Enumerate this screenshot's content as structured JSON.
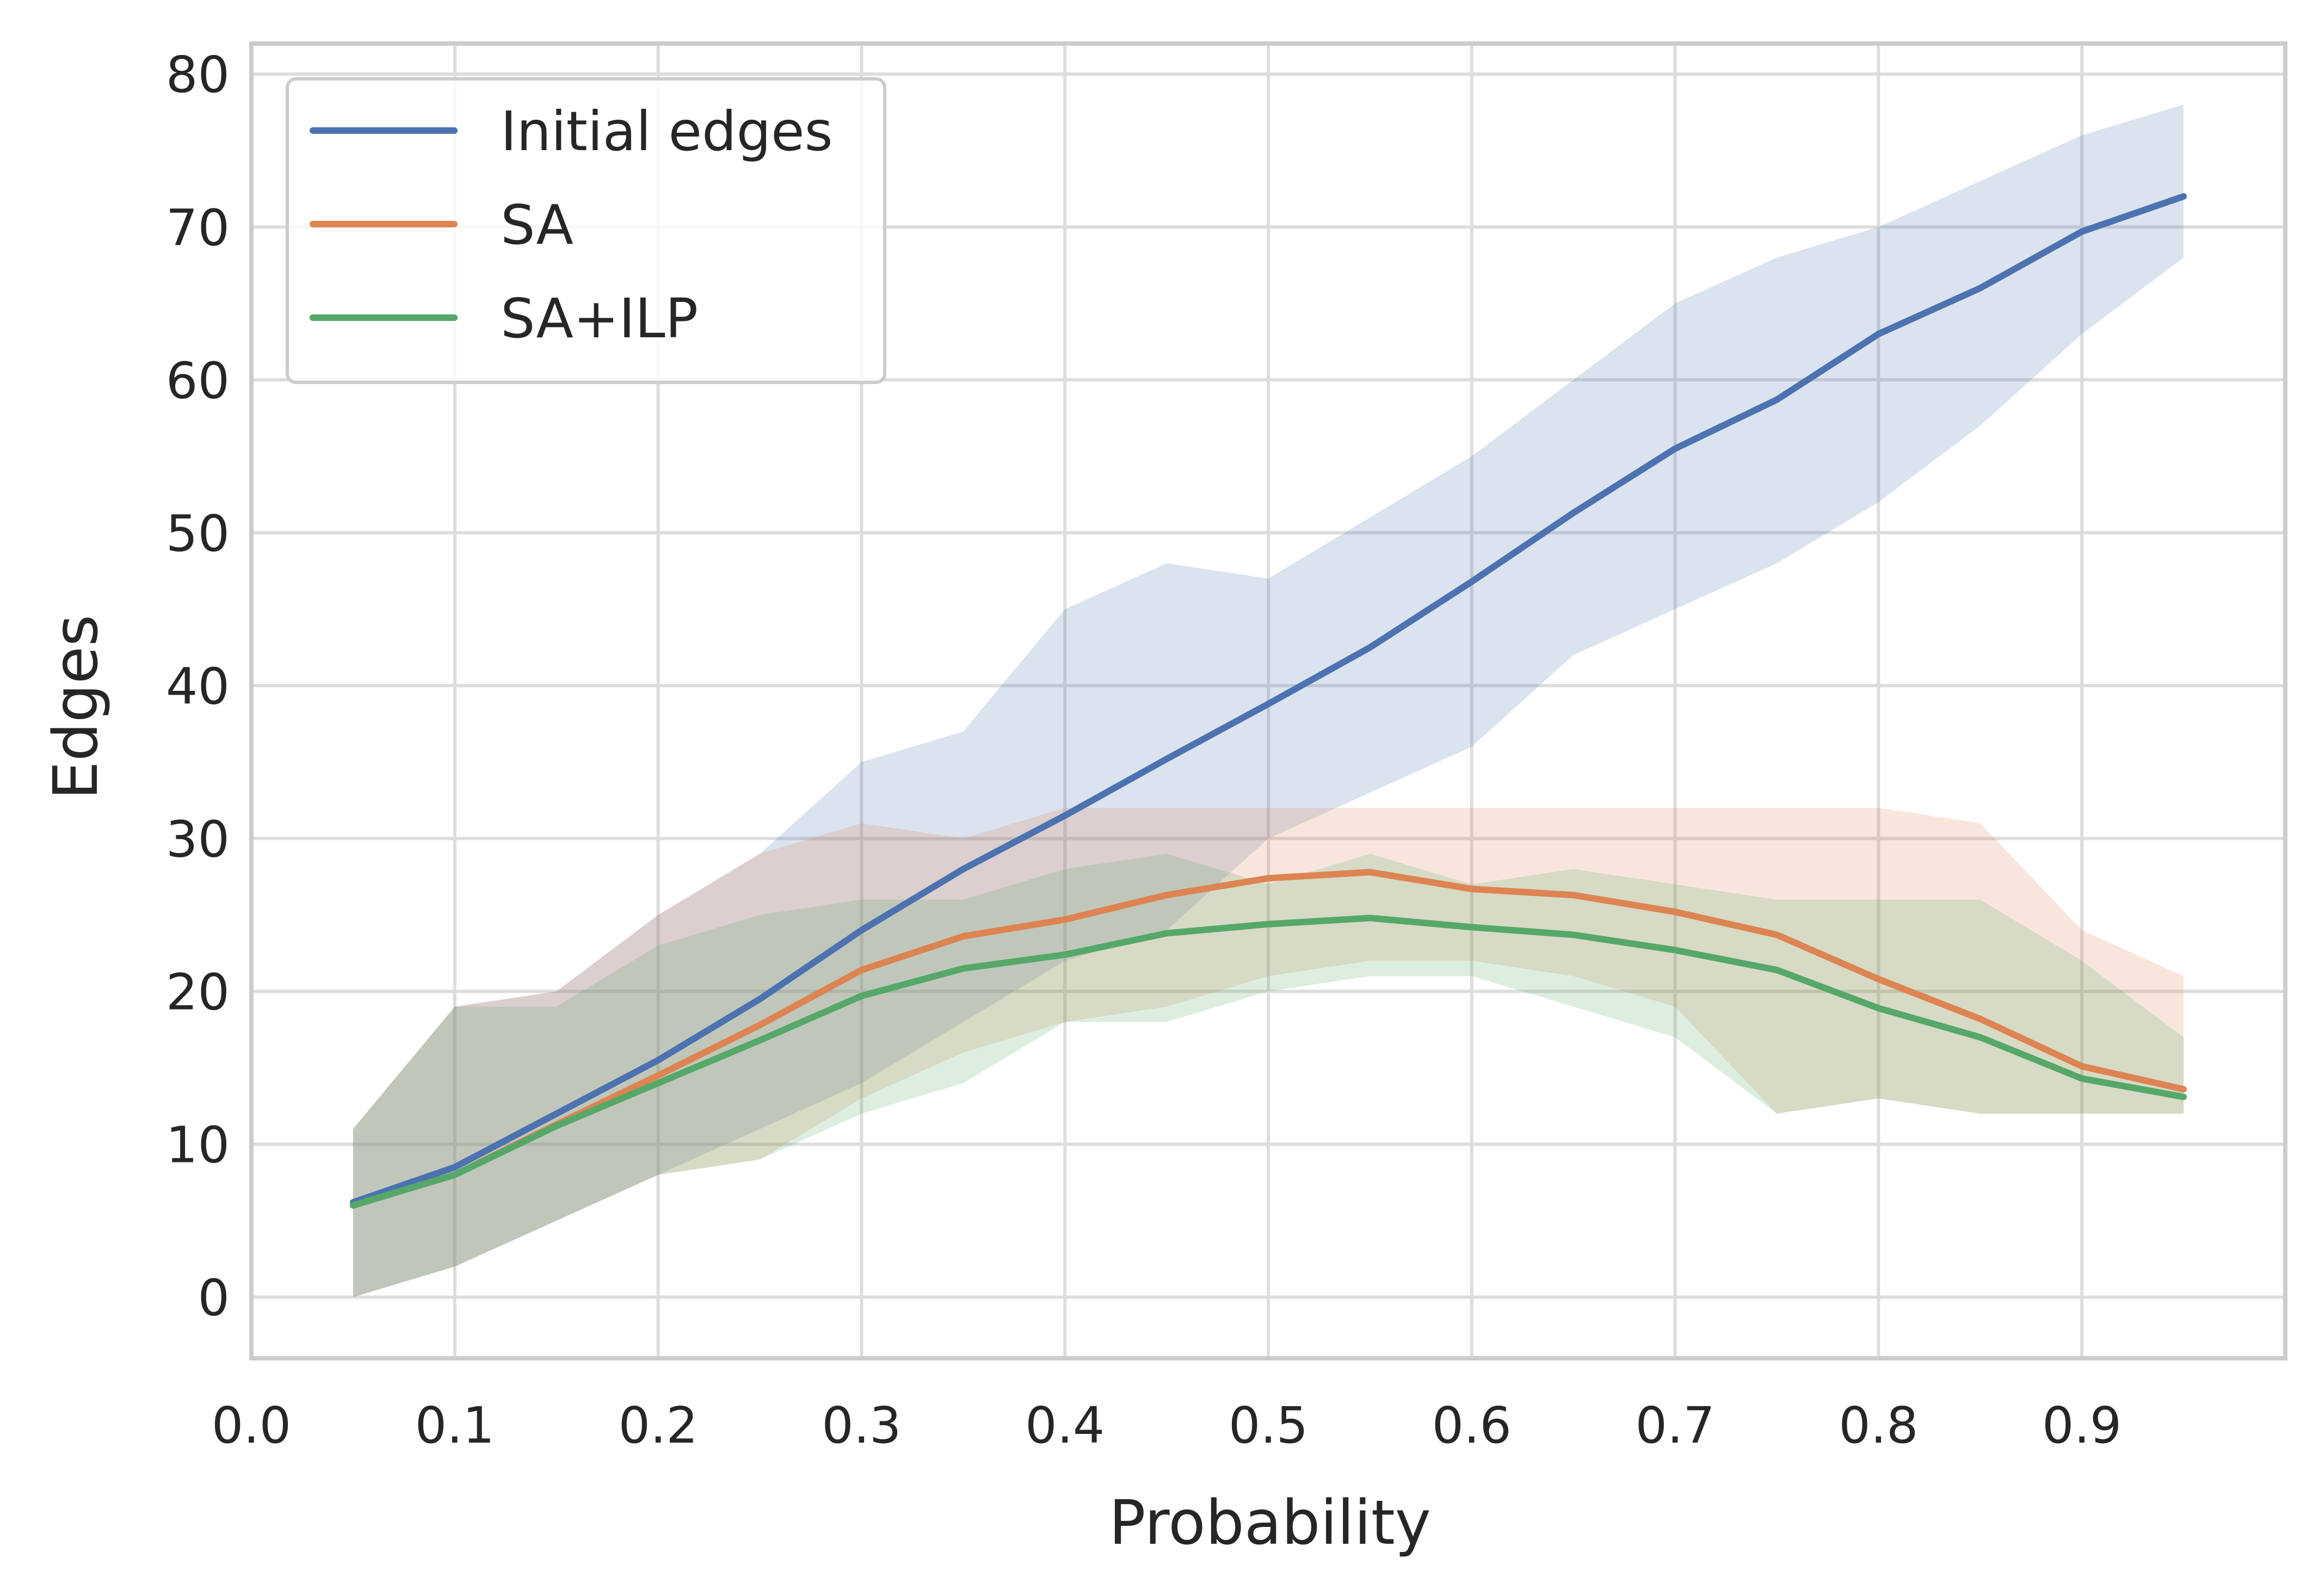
{
  "chart_data": {
    "type": "line",
    "title": "",
    "xlabel": "Probability",
    "ylabel": "Edges",
    "xlim": [
      0.0,
      1.0
    ],
    "ylim": [
      -4,
      82
    ],
    "xticks": [
      "0.0",
      "0.1",
      "0.2",
      "0.3",
      "0.4",
      "0.5",
      "0.6",
      "0.7",
      "0.8",
      "0.9"
    ],
    "yticks": [
      "0",
      "10",
      "20",
      "30",
      "40",
      "50",
      "60",
      "70",
      "80"
    ],
    "grid": true,
    "legend_position": "top-left",
    "x": [
      0.05,
      0.1,
      0.15,
      0.2,
      0.25,
      0.3,
      0.35,
      0.4,
      0.45,
      0.5,
      0.55,
      0.6,
      0.65,
      0.7,
      0.75,
      0.8,
      0.85,
      0.9,
      0.95
    ],
    "series": [
      {
        "name": "Initial edges",
        "color": "#4c72b0",
        "values": [
          6.2,
          8.5,
          12.0,
          15.5,
          19.5,
          24.0,
          28.0,
          31.5,
          35.2,
          38.8,
          42.5,
          46.8,
          51.3,
          55.5,
          58.7,
          63.0,
          66.0,
          69.7,
          72.0
        ],
        "lower": [
          0,
          2,
          5,
          8,
          11,
          14,
          18,
          22,
          24,
          30,
          33,
          36,
          42,
          45,
          48,
          52,
          57,
          63,
          68
        ],
        "upper": [
          11,
          19,
          20,
          25,
          29,
          35,
          37,
          45,
          48,
          47,
          51,
          55,
          60,
          65,
          68,
          70,
          73,
          76,
          78
        ]
      },
      {
        "name": "SA",
        "color": "#dd8452",
        "values": [
          6.0,
          8.0,
          11.3,
          14.5,
          17.8,
          21.4,
          23.6,
          24.7,
          26.3,
          27.4,
          27.8,
          26.7,
          26.3,
          25.2,
          23.7,
          20.8,
          18.2,
          15.1,
          13.6
        ],
        "lower": [
          0,
          2,
          5,
          8,
          9,
          13,
          16,
          18,
          19,
          21,
          22,
          22,
          21,
          19,
          12,
          13,
          12,
          12,
          12
        ],
        "upper": [
          11,
          19,
          20,
          25,
          29,
          31,
          30,
          32,
          32,
          32,
          32,
          32,
          32,
          32,
          32,
          32,
          31,
          24,
          21
        ]
      },
      {
        "name": "SA+ILP",
        "color": "#55a868",
        "values": [
          6.0,
          8.0,
          11.2,
          14.0,
          16.8,
          19.7,
          21.5,
          22.4,
          23.8,
          24.4,
          24.8,
          24.2,
          23.7,
          22.7,
          21.4,
          18.9,
          17.0,
          14.3,
          13.1
        ],
        "lower": [
          0,
          2,
          5,
          8,
          9,
          12,
          14,
          18,
          18,
          20,
          21,
          21,
          19,
          17,
          12,
          13,
          12,
          12,
          12
        ],
        "upper": [
          11,
          19,
          19,
          23,
          25,
          26,
          26,
          28,
          29,
          27,
          29,
          27,
          28,
          27,
          26,
          26,
          26,
          22,
          17
        ]
      }
    ]
  }
}
